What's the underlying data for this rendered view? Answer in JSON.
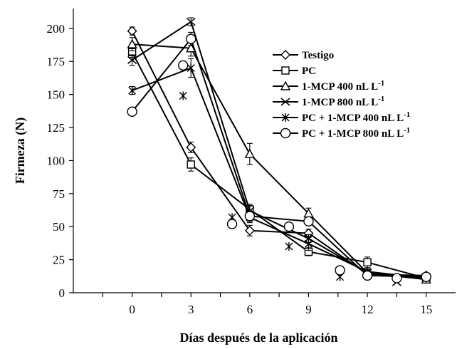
{
  "chart_data": {
    "type": "line",
    "xlabel": "Días después de la aplicación",
    "ylabel": "Firmeza (N)",
    "xlim": [
      -3,
      16.5
    ],
    "ylim": [
      0,
      215
    ],
    "xticks": [
      0,
      3,
      6,
      9,
      12,
      15
    ],
    "yticks": [
      0,
      25,
      50,
      75,
      100,
      125,
      150,
      175,
      200
    ],
    "grid": false,
    "legend_position": "top-right",
    "series": [
      {
        "name": "Testigo",
        "marker": "diamond",
        "points": [
          [
            0,
            198
          ],
          [
            3,
            110
          ],
          [
            6,
            47
          ],
          [
            9,
            45
          ],
          [
            12,
            14
          ],
          [
            15,
            13
          ]
        ],
        "err": [
          3,
          4,
          4,
          3,
          2,
          2
        ]
      },
      {
        "name": "PC",
        "marker": "square",
        "points": [
          [
            0,
            182
          ],
          [
            3,
            97
          ],
          [
            6,
            63
          ],
          [
            9,
            31
          ],
          [
            12,
            23
          ],
          [
            15,
            11
          ]
        ],
        "err": [
          4,
          5,
          4,
          3,
          4,
          2
        ]
      },
      {
        "name": "1-MCP 400 nL L-1",
        "marker": "triangle",
        "points": [
          [
            0,
            188
          ],
          [
            3,
            185
          ],
          [
            6,
            105
          ],
          [
            9,
            60
          ],
          [
            12,
            15
          ],
          [
            15,
            10
          ]
        ],
        "err": [
          5,
          6,
          8,
          4,
          2,
          2
        ]
      },
      {
        "name": "1-MCP 800 nL L-1",
        "marker": "x",
        "points": [
          [
            0,
            176
          ],
          [
            3,
            205
          ],
          [
            6,
            62
          ],
          [
            9,
            41
          ],
          [
            12,
            15
          ],
          [
            15,
            12
          ]
        ],
        "err": [
          4,
          3,
          4,
          3,
          2,
          2
        ]
      },
      {
        "name": "PC + 1-MCP 400 nL L-1",
        "marker": "star",
        "points": [
          [
            0,
            153
          ],
          [
            3,
            170
          ],
          [
            6,
            57
          ],
          [
            9,
            37
          ],
          [
            12,
            16
          ],
          [
            15,
            11
          ]
        ],
        "err": [
          3,
          7,
          4,
          5,
          2,
          2
        ]
      },
      {
        "name": "PC + 1-MCP 800 nL L-1",
        "marker": "circle",
        "points": [
          [
            0,
            137
          ],
          [
            3,
            192
          ],
          [
            6,
            58
          ],
          [
            9,
            54
          ],
          [
            12,
            13
          ],
          [
            15,
            12
          ]
        ],
        "err": [
          3,
          5,
          4,
          3,
          2,
          2
        ]
      }
    ],
    "stray_markers": [
      {
        "marker": "star",
        "x": 2.6,
        "y": 149
      },
      {
        "marker": "circle",
        "x": 2.6,
        "y": 172
      },
      {
        "marker": "star",
        "x": 5.1,
        "y": 57
      },
      {
        "marker": "circle",
        "x": 5.1,
        "y": 52
      },
      {
        "marker": "star",
        "x": 8.0,
        "y": 35
      },
      {
        "marker": "circle",
        "x": 8.0,
        "y": 50
      },
      {
        "marker": "star",
        "x": 10.6,
        "y": 12
      },
      {
        "marker": "circle",
        "x": 10.6,
        "y": 17
      },
      {
        "marker": "x",
        "x": 13.5,
        "y": 8
      },
      {
        "marker": "circle",
        "x": 13.5,
        "y": 11
      }
    ],
    "legend": [
      {
        "marker": "diamond",
        "label": "Testigo",
        "sup": ""
      },
      {
        "marker": "square",
        "label": "PC",
        "sup": ""
      },
      {
        "marker": "triangle",
        "label": "1-MCP 400 nL L",
        "sup": "-1"
      },
      {
        "marker": "x",
        "label": "1-MCP 800 nL L",
        "sup": "-1"
      },
      {
        "marker": "star",
        "label": "PC + 1-MCP 400 nL L",
        "sup": "-1"
      },
      {
        "marker": "circle",
        "label": "PC + 1-MCP 800 nL L",
        "sup": "-1"
      }
    ]
  }
}
